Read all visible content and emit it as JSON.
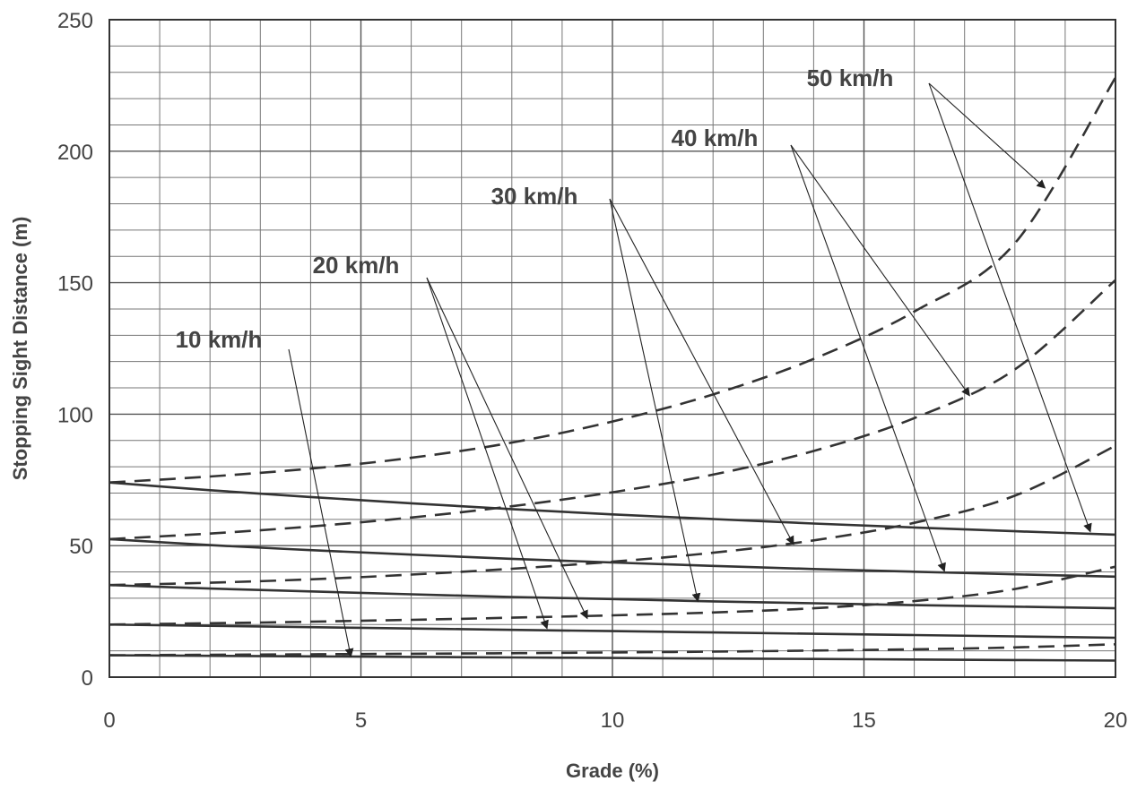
{
  "chart_data": {
    "type": "line",
    "xlabel": "Grade (%)",
    "ylabel": "Stopping Sight Distance (m)",
    "xlim": [
      0,
      20
    ],
    "ylim": [
      0,
      250
    ],
    "xticks": [
      0,
      5,
      10,
      15,
      20
    ],
    "yticks": [
      0,
      50,
      100,
      150,
      200,
      250
    ],
    "grid": true,
    "line_styles": {
      "uphill": "solid",
      "downhill": "dashed"
    },
    "x": [
      0,
      2,
      4,
      6,
      8,
      10,
      12,
      14,
      16,
      18,
      20
    ],
    "series": [
      {
        "name": "10 km/h",
        "solid": [
          8.3,
          8.1,
          7.9,
          7.7,
          7.5,
          7.3,
          7.1,
          6.9,
          6.7,
          6.5,
          6.3
        ],
        "dashed": [
          8.3,
          8.5,
          8.7,
          8.9,
          9.1,
          9.4,
          9.7,
          10.1,
          10.6,
          11.3,
          12.5
        ]
      },
      {
        "name": "20 km/h",
        "solid": [
          20,
          19.5,
          19,
          18.5,
          18,
          17.5,
          17,
          16.5,
          16,
          15.5,
          15
        ],
        "dashed": [
          20,
          20.5,
          21.1,
          21.8,
          22.6,
          23.5,
          24.6,
          26.2,
          28.9,
          33.5,
          42
        ]
      },
      {
        "name": "30 km/h",
        "solid": [
          35,
          33.7,
          32.6,
          31.5,
          30.5,
          29.7,
          28.8,
          28.1,
          27.4,
          26.8,
          26.2
        ],
        "dashed": [
          35,
          35.9,
          37.2,
          39,
          41.2,
          43.9,
          47.3,
          52,
          58.7,
          69,
          88
        ]
      },
      {
        "name": "40 km/h",
        "solid": [
          52.5,
          50.2,
          48.3,
          46.6,
          45,
          43.6,
          42.3,
          41.1,
          40.1,
          39.1,
          38.2
        ],
        "dashed": [
          52.5,
          54.6,
          57.3,
          60.7,
          65,
          70.3,
          77,
          86,
          98.5,
          117,
          151
        ]
      },
      {
        "name": "50 km/h",
        "solid": [
          74,
          71.1,
          68.5,
          66.1,
          63.9,
          61.9,
          60.1,
          58.4,
          56.9,
          55.5,
          54.2
        ],
        "dashed": [
          74,
          76.3,
          79.3,
          83.4,
          89.2,
          97.2,
          107.5,
          121,
          139,
          165,
          228
        ]
      }
    ],
    "annotations": [
      {
        "label": "10 km/h",
        "targets": [
          [
            4.8,
            7.8
          ]
        ]
      },
      {
        "label": "20 km/h",
        "targets": [
          [
            8.7,
            18.5
          ],
          [
            9.5,
            22.3
          ]
        ]
      },
      {
        "label": "30 km/h",
        "targets": [
          [
            11.7,
            28.8
          ],
          [
            13.6,
            50.5
          ]
        ]
      },
      {
        "label": "40 km/h",
        "targets": [
          [
            16.6,
            40.3
          ],
          [
            17.1,
            107
          ]
        ]
      },
      {
        "label": "50 km/h",
        "targets": [
          [
            19.5,
            55.3
          ],
          [
            18.6,
            186
          ]
        ]
      }
    ]
  }
}
